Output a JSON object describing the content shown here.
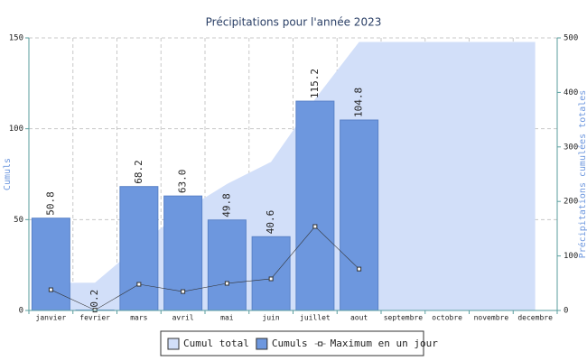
{
  "chart_data": {
    "type": "bar",
    "title": "Précipitations pour l'année 2023",
    "y_label": "Cumuls",
    "y2_label": "Précipitations cumulées totales",
    "categories": [
      "janvier",
      "fevrier",
      "mars",
      "avril",
      "mai",
      "juin",
      "juillet",
      "aout",
      "septembre",
      "octobre",
      "novembre",
      "decembre"
    ],
    "series": [
      {
        "name": "Cumul total",
        "type": "area",
        "axis": "y2",
        "color": "#d2dff9",
        "values": [
          50.8,
          51.0,
          119.2,
          182.2,
          232.0,
          272.6,
          387.8,
          492.6,
          492.6,
          492.6,
          492.6,
          492.6
        ]
      },
      {
        "name": "Cumuls",
        "type": "bar",
        "color": "#6d97de",
        "values": [
          50.8,
          0.2,
          68.2,
          63.0,
          49.8,
          40.6,
          115.2,
          104.8,
          null,
          null,
          null,
          null
        ],
        "value_labels": [
          "50.8",
          "0.2",
          "68.2",
          "63.0",
          "49.8",
          "40.6",
          "115.2",
          "104.8",
          null,
          null,
          null,
          null
        ]
      },
      {
        "name": "Maximum en un jour",
        "type": "line",
        "color": "#333333",
        "values": [
          11.4,
          0.2,
          14.4,
          10.4,
          14.9,
          17.4,
          46.2,
          22.8,
          null,
          null,
          null,
          null
        ]
      }
    ],
    "ylim": [
      0,
      150
    ],
    "yticks": [
      0,
      50,
      100,
      150
    ],
    "y2lim": [
      0,
      500
    ],
    "y2ticks": [
      0,
      100,
      200,
      300,
      400,
      500
    ],
    "grid": true,
    "legend": "bottom"
  }
}
